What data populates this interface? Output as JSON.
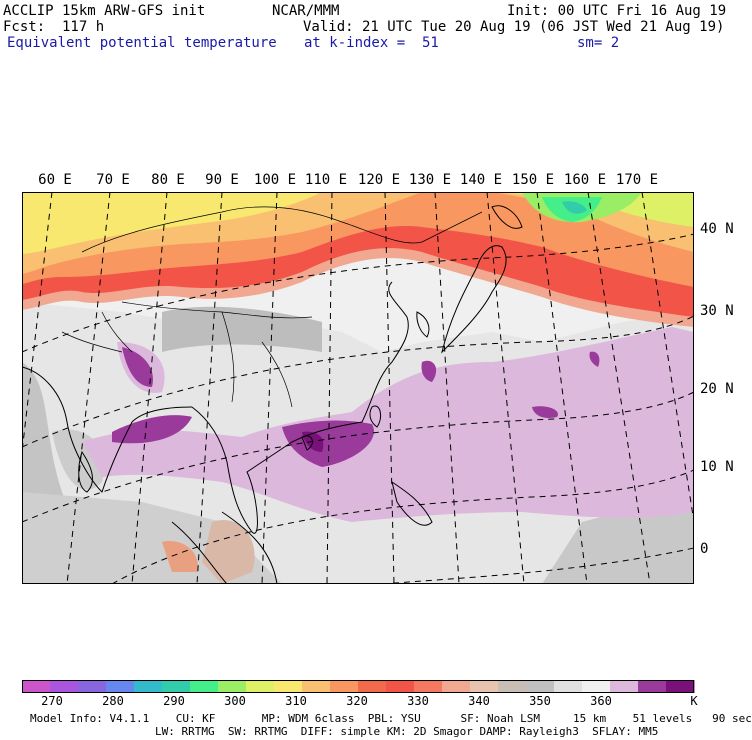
{
  "header": {
    "model": "ACCLIP 15km ARW-GFS init",
    "org": "NCAR/MMM",
    "init": "Init: 00 UTC Fri 16 Aug 19",
    "fcst": "Fcst:  117 h",
    "valid": "Valid: 21 UTC Tue 20 Aug 19 (06 JST Wed 21 Aug 19)",
    "field": "Equivalent potential temperature",
    "level": "at k-index =  51",
    "smooth": "sm= 2"
  },
  "map": {
    "lon_labels": [
      "60 E",
      "70 E",
      "80 E",
      "90 E",
      "100 E",
      "110 E",
      "120 E",
      "130 E",
      "140 E",
      "150 E",
      "160 E",
      "170 E"
    ],
    "lat_labels": [
      "40 N",
      "30 N",
      "20 N",
      "10 N",
      "0"
    ]
  },
  "colorbar": {
    "colors": [
      "#cc55cc",
      "#aa55dd",
      "#8866dd",
      "#6688ee",
      "#33bbcc",
      "#33ccaa",
      "#44ee88",
      "#99ee66",
      "#ddf066",
      "#f8e870",
      "#f8c070",
      "#f89860",
      "#f26a4c",
      "#f25448",
      "#f57860",
      "#f0a890",
      "#e8c4b0",
      "#c8beb4",
      "#c0c0c0",
      "#e0e0e0",
      "#f0f0f0",
      "#dcb8dc",
      "#9a3a9a",
      "#7a107a"
    ],
    "labels": [
      "270",
      "280",
      "290",
      "300",
      "310",
      "320",
      "330",
      "340",
      "350",
      "360"
    ],
    "unit": "K"
  },
  "footer": {
    "line1": "Model Info: V4.1.1    CU: KF       MP: WDM 6class  PBL: YSU      SF: Noah LSM     15 km    51 levels   90 sec",
    "line2": "LW: RRTMG  SW: RRTMG  DIFF: simple KM: 2D Smagor DAMP: Rayleigh3  SFLAY: MM5"
  }
}
